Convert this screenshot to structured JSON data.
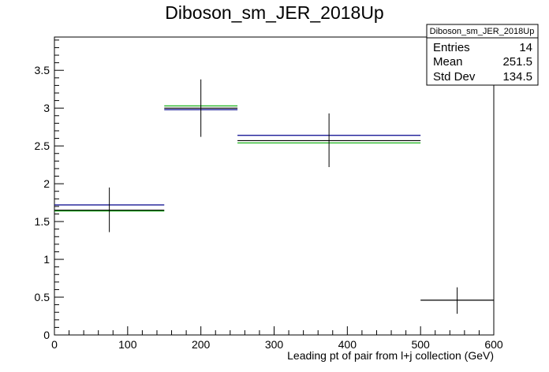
{
  "chart_data": {
    "type": "histogram",
    "title": "Diboson_sm_JER_2018Up",
    "xlabel": "Leading pt of pair from l+j collection (GeV)",
    "ylabel": "",
    "xlim": [
      0,
      600
    ],
    "ylim": [
      0,
      3.94
    ],
    "x_ticks": [
      0,
      100,
      200,
      300,
      400,
      500,
      600
    ],
    "x_tick_labels": [
      "0",
      "100",
      "200",
      "300",
      "400",
      "500",
      "600"
    ],
    "y_ticks": [
      0,
      0.5,
      1,
      1.5,
      2,
      2.5,
      3,
      3.5
    ],
    "y_tick_labels": [
      "0",
      "0.5",
      "1",
      "1.5",
      "2",
      "2.5",
      "3",
      "3.5"
    ],
    "bins": [
      {
        "x_low": 0,
        "x_high": 150,
        "x_center": 75,
        "value": 1.65,
        "err_low": 1.36,
        "err_high": 1.95
      },
      {
        "x_low": 150,
        "x_high": 250,
        "x_center": 200,
        "value": 3.0,
        "err_low": 2.62,
        "err_high": 3.38
      },
      {
        "x_low": 250,
        "x_high": 500,
        "x_center": 375,
        "value": 2.57,
        "err_low": 2.22,
        "err_high": 2.93
      },
      {
        "x_low": 500,
        "x_high": 600,
        "x_center": 550,
        "value": 0.46,
        "err_low": 0.28,
        "err_high": 0.63
      }
    ],
    "series": [
      {
        "name": "",
        "color": "#00008b",
        "values": [
          1.72,
          2.98,
          2.64,
          null
        ]
      },
      {
        "name": "",
        "color": "#00aa00",
        "values": [
          1.64,
          3.03,
          2.54,
          null
        ]
      },
      {
        "name": "",
        "color": "#000000",
        "values": [
          1.65,
          3.0,
          2.57,
          0.46
        ]
      }
    ],
    "stats_box": {
      "title": "Diboson_sm_JER_2018Up",
      "rows": [
        {
          "label": "Entries",
          "value": "14"
        },
        {
          "label": "Mean",
          "value": "251.5"
        },
        {
          "label": "Std Dev",
          "value": "134.5"
        }
      ]
    },
    "grid": false
  }
}
